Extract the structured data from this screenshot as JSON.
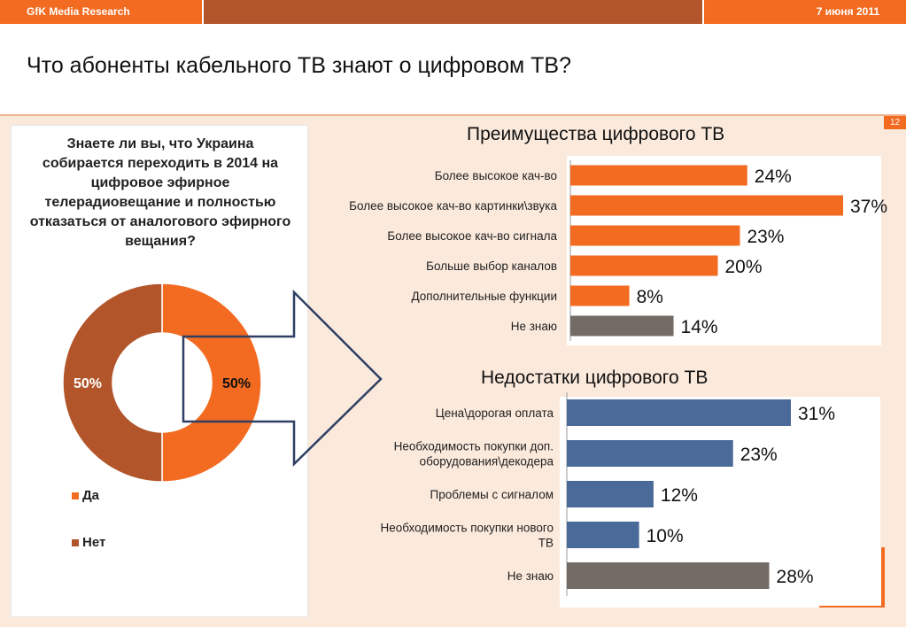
{
  "header": {
    "brand": "GfK Media Research",
    "date": "7 июня 2011",
    "title": "Что абоненты кабельного ТВ знают о цифровом ТВ?",
    "page_number": "12"
  },
  "colors": {
    "orange": "#f26b21",
    "brown": "#b2552b",
    "blue": "#4a6a99",
    "gray": "#746b65",
    "navy_arrow": "#2e3f63"
  },
  "chart_data": [
    {
      "type": "pie",
      "title": "Знаете ли вы, что Украина собирается переходить в 2014 на цифровое эфирное телерадиовещание и полностью отказаться от аналогового эфирного вещания?",
      "categories": [
        "Да",
        "Нет"
      ],
      "values": [
        50,
        50
      ],
      "data_labels": [
        "50%",
        "50%"
      ],
      "colors": [
        "#f26b21",
        "#b2552b"
      ],
      "donut": true,
      "legend": "bottom-left"
    },
    {
      "type": "bar",
      "orientation": "horizontal",
      "title": "Преимущества цифрового ТВ",
      "categories": [
        "Более высокое кач-во",
        "Более высокое кач-во картинки\\звука",
        "Более высокое кач-во сигнала",
        "Больше выбор каналов",
        "Дополнительные функции",
        "Не знаю"
      ],
      "values": [
        24,
        37,
        23,
        20,
        8,
        14
      ],
      "data_labels": [
        "24%",
        "37%",
        "23%",
        "20%",
        "8%",
        "14%"
      ],
      "bar_colors": [
        "#f26b21",
        "#f26b21",
        "#f26b21",
        "#f26b21",
        "#f26b21",
        "#746b65"
      ],
      "xlim": [
        0,
        37
      ]
    },
    {
      "type": "bar",
      "orientation": "horizontal",
      "title": "Недостатки цифрового ТВ",
      "categories": [
        "Цена\\дорогая оплата",
        "Необходимость покупки доп. оборудования\\декодера",
        "Проблемы с сигналом",
        "Необходимость покупки нового ТВ",
        "Не знаю"
      ],
      "category_lines": [
        [
          "Цена\\дорогая оплата"
        ],
        [
          "Необходимость покупки доп.",
          "оборудования\\декодера"
        ],
        [
          "Проблемы с сигналом"
        ],
        [
          "Необходимость покупки нового",
          "ТВ"
        ],
        [
          "Не знаю"
        ]
      ],
      "values": [
        31,
        23,
        12,
        10,
        28
      ],
      "data_labels": [
        "31%",
        "23%",
        "12%",
        "10%",
        "28%"
      ],
      "bar_colors": [
        "#4a6a99",
        "#4a6a99",
        "#4a6a99",
        "#4a6a99",
        "#746b65"
      ],
      "xlim": [
        0,
        31
      ]
    }
  ]
}
